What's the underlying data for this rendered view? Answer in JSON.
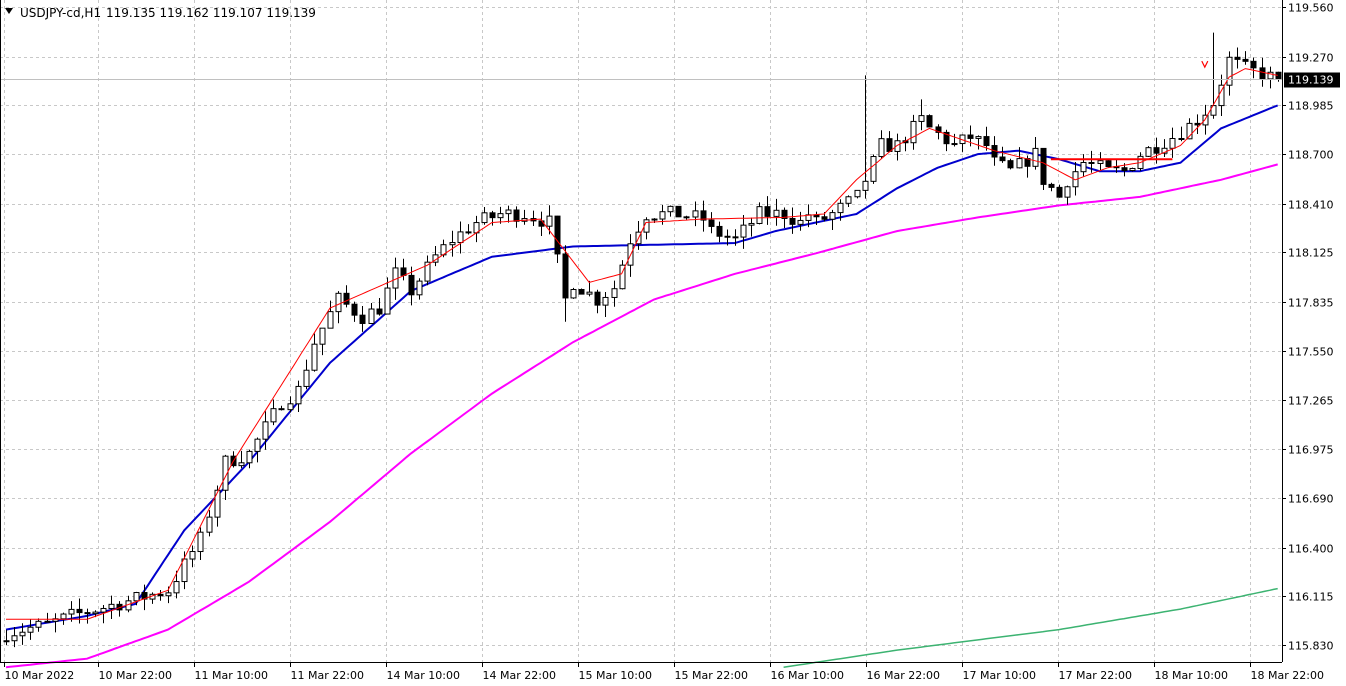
{
  "header": {
    "menu_icon": "triangle-down-icon",
    "symbol": "USDJPY-cd,H1",
    "ohlc": "119.135 119.162 119.107 119.139"
  },
  "price_badge": "119.139",
  "colors": {
    "bull": "#ffffff",
    "bear": "#000000",
    "outline": "#000000",
    "ma_fast": "#ff0000",
    "ma_mid": "#0000cd",
    "ma_slow": "#ff00ff",
    "ma_long": "#3cb371",
    "level_line": "#ff0000",
    "grid": "#c8c8c8",
    "badge_bg": "#000000",
    "badge_text": "#ffffff"
  },
  "chart_data": {
    "type": "candlestick",
    "symbol": "USDJPY-cd",
    "timeframe": "H1",
    "grid": true,
    "ylim": [
      115.7,
      119.59
    ],
    "y_ticks": [
      "119.560",
      "119.270",
      "118.985",
      "118.700",
      "118.410",
      "118.125",
      "117.835",
      "117.550",
      "117.265",
      "116.975",
      "116.690",
      "116.400",
      "116.115",
      "115.830"
    ],
    "x_ticks": [
      "10 Mar 2022",
      "10 Mar 22:00",
      "11 Mar 10:00",
      "11 Mar 22:00",
      "14 Mar 10:00",
      "14 Mar 22:00",
      "15 Mar 10:00",
      "15 Mar 22:00",
      "16 Mar 10:00",
      "16 Mar 22:00",
      "17 Mar 10:00",
      "17 Mar 22:00",
      "18 Mar 10:00",
      "18 Mar 22:00"
    ],
    "last_price": 119.139,
    "horizontal_level": 118.67,
    "close_anchors": [
      [
        0,
        115.9
      ],
      [
        5,
        115.95
      ],
      [
        8,
        116.0
      ],
      [
        12,
        116.05
      ],
      [
        16,
        116.1
      ],
      [
        20,
        116.15
      ],
      [
        22,
        116.3
      ],
      [
        24,
        116.45
      ],
      [
        27,
        116.9
      ],
      [
        30,
        116.95
      ],
      [
        32,
        117.1
      ],
      [
        34,
        117.25
      ],
      [
        36,
        117.32
      ],
      [
        38,
        117.6
      ],
      [
        41,
        117.85
      ],
      [
        44,
        117.75
      ],
      [
        46,
        117.8
      ],
      [
        48,
        118.0
      ],
      [
        50,
        117.9
      ],
      [
        53,
        118.1
      ],
      [
        55,
        118.2
      ],
      [
        58,
        118.3
      ],
      [
        61,
        118.35
      ],
      [
        64,
        118.35
      ],
      [
        67,
        118.3
      ],
      [
        69,
        117.85
      ],
      [
        70,
        117.95
      ],
      [
        73,
        117.85
      ],
      [
        75,
        117.92
      ],
      [
        77,
        118.2
      ],
      [
        79,
        118.35
      ],
      [
        83,
        118.35
      ],
      [
        86,
        118.32
      ],
      [
        87,
        118.25
      ],
      [
        90,
        118.2
      ],
      [
        93,
        118.35
      ],
      [
        96,
        118.35
      ],
      [
        98,
        118.3
      ],
      [
        99,
        118.35
      ],
      [
        100,
        118.3
      ],
      [
        102,
        118.35
      ],
      [
        105,
        118.45
      ],
      [
        108,
        118.75
      ],
      [
        110,
        118.75
      ],
      [
        113,
        118.9
      ],
      [
        114,
        118.85
      ],
      [
        117,
        118.75
      ],
      [
        119,
        118.8
      ],
      [
        121,
        118.75
      ],
      [
        122,
        118.65
      ],
      [
        124,
        118.6
      ],
      [
        127,
        118.7
      ],
      [
        128,
        118.55
      ],
      [
        130,
        118.45
      ],
      [
        131,
        118.55
      ],
      [
        133,
        118.65
      ],
      [
        135,
        118.62
      ],
      [
        136,
        118.6
      ],
      [
        138,
        118.6
      ],
      [
        140,
        118.7
      ],
      [
        142,
        118.75
      ],
      [
        144,
        118.8
      ],
      [
        147,
        118.9
      ],
      [
        149,
        119.0
      ],
      [
        151,
        119.25
      ],
      [
        153,
        119.2
      ],
      [
        155,
        119.17
      ],
      [
        156,
        119.15
      ],
      [
        157,
        119.139
      ]
    ],
    "series": [
      {
        "name": "",
        "color": "#ff0000",
        "kind": "moving-average",
        "values": [
          [
            0,
            115.98
          ],
          [
            10,
            115.98
          ],
          [
            20,
            116.15
          ],
          [
            28,
            116.9
          ],
          [
            40,
            117.8
          ],
          [
            52,
            118.05
          ],
          [
            60,
            118.3
          ],
          [
            66,
            118.32
          ],
          [
            72,
            117.95
          ],
          [
            76,
            118.0
          ],
          [
            79,
            118.3
          ],
          [
            86,
            118.32
          ],
          [
            96,
            118.33
          ],
          [
            101,
            118.35
          ],
          [
            105,
            118.55
          ],
          [
            110,
            118.75
          ],
          [
            114,
            118.85
          ],
          [
            122,
            118.72
          ],
          [
            128,
            118.65
          ],
          [
            132,
            118.55
          ],
          [
            136,
            118.62
          ],
          [
            140,
            118.65
          ],
          [
            145,
            118.75
          ],
          [
            148,
            118.9
          ],
          [
            151,
            119.15
          ],
          [
            153,
            119.2
          ],
          [
            157,
            119.16
          ]
        ]
      },
      {
        "name": "",
        "color": "#0000cd",
        "kind": "moving-average",
        "values": [
          [
            0,
            115.92
          ],
          [
            10,
            116.0
          ],
          [
            16,
            116.07
          ],
          [
            22,
            116.5
          ],
          [
            30,
            116.9
          ],
          [
            40,
            117.48
          ],
          [
            50,
            117.9
          ],
          [
            60,
            118.1
          ],
          [
            70,
            118.16
          ],
          [
            80,
            118.17
          ],
          [
            90,
            118.18
          ],
          [
            95,
            118.25
          ],
          [
            100,
            118.3
          ],
          [
            105,
            118.35
          ],
          [
            110,
            118.5
          ],
          [
            115,
            118.62
          ],
          [
            120,
            118.7
          ],
          [
            125,
            118.72
          ],
          [
            130,
            118.67
          ],
          [
            135,
            118.6
          ],
          [
            140,
            118.6
          ],
          [
            145,
            118.65
          ],
          [
            150,
            118.85
          ],
          [
            157,
            118.985
          ]
        ]
      },
      {
        "name": "",
        "color": "#ff00ff",
        "kind": "moving-average",
        "values": [
          [
            0,
            115.7
          ],
          [
            10,
            115.75
          ],
          [
            20,
            115.92
          ],
          [
            30,
            116.2
          ],
          [
            40,
            116.55
          ],
          [
            50,
            116.95
          ],
          [
            60,
            117.3
          ],
          [
            70,
            117.6
          ],
          [
            80,
            117.85
          ],
          [
            90,
            118.0
          ],
          [
            100,
            118.12
          ],
          [
            110,
            118.25
          ],
          [
            120,
            118.33
          ],
          [
            130,
            118.4
          ],
          [
            140,
            118.45
          ],
          [
            150,
            118.55
          ],
          [
            157,
            118.64
          ]
        ]
      },
      {
        "name": "",
        "color": "#3cb371",
        "kind": "moving-average",
        "values": [
          [
            96,
            115.7
          ],
          [
            110,
            115.8
          ],
          [
            130,
            115.92
          ],
          [
            145,
            116.04
          ],
          [
            157,
            116.16
          ]
        ]
      }
    ]
  }
}
